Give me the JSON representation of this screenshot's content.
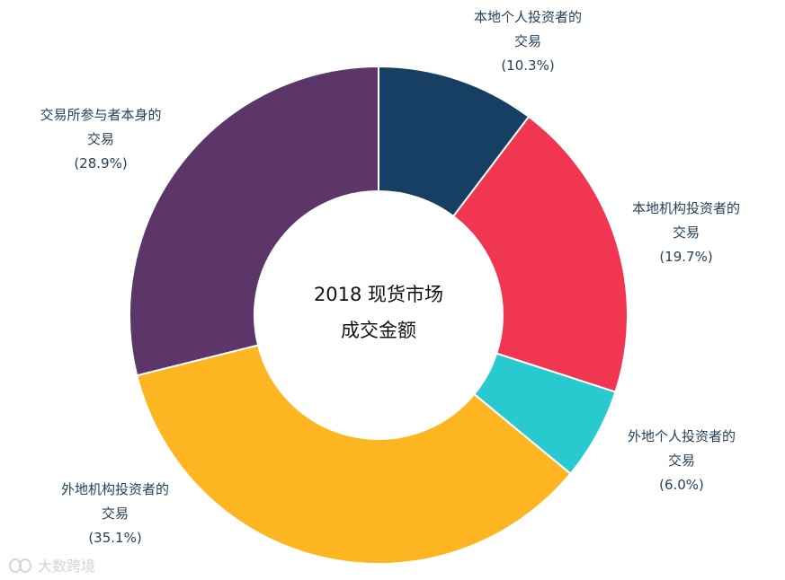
{
  "chart_data": {
    "type": "pie",
    "variant": "donut",
    "center_title_line1": "2018 现货市场",
    "center_title_line2": "成交金额",
    "slices": [
      {
        "label_line1": "本地个人投资者的",
        "label_line2": "交易",
        "value": 10.3,
        "value_text": "(10.3%)",
        "color": "#173f63"
      },
      {
        "label_line1": "本地机构投资者的",
        "label_line2": "交易",
        "value": 19.7,
        "value_text": "(19.7%)",
        "color": "#f03650"
      },
      {
        "label_line1": "外地个人投资者的",
        "label_line2": "交易",
        "value": 6.0,
        "value_text": "(6.0%)",
        "color": "#28cad0"
      },
      {
        "label_line1": "外地机构投资者的",
        "label_line2": "交易",
        "value": 35.1,
        "value_text": "(35.1%)",
        "color": "#fdb622"
      },
      {
        "label_line1": "交易所参与者本身的",
        "label_line2": "交易",
        "value": 28.9,
        "value_text": "(28.9%)",
        "color": "#5c3669"
      }
    ],
    "start_angle": "12 o'clock",
    "direction": "clockwise",
    "legend": "none"
  },
  "watermark": {
    "text": "大数跨境",
    "icon": "logo-icon"
  }
}
